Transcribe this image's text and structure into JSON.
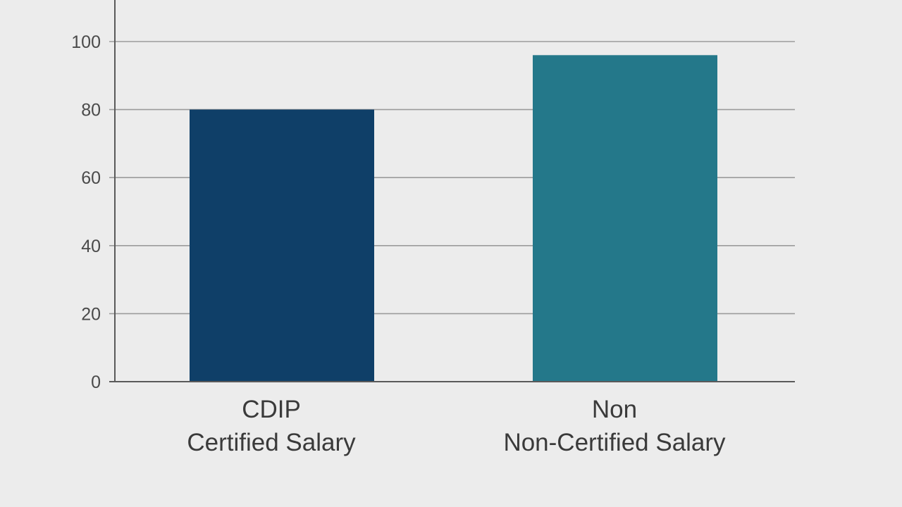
{
  "chart_data": {
    "type": "bar",
    "categories": [
      [
        "CDIP",
        "Certified Salary"
      ],
      [
        "Non",
        "Non-Certified Salary"
      ]
    ],
    "values": [
      80,
      96
    ],
    "colors": [
      "#0f3f68",
      "#24788a"
    ],
    "ylim": [
      0,
      100
    ],
    "yticks": [
      0,
      20,
      40,
      60,
      80,
      100
    ],
    "grid": true,
    "title": "",
    "xlabel": "",
    "ylabel": ""
  }
}
